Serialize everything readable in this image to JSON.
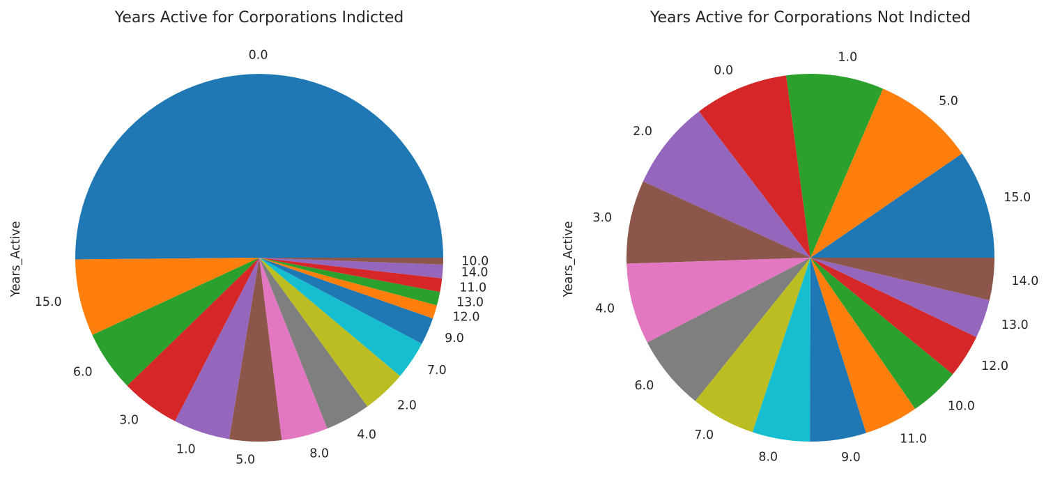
{
  "chart_data": [
    {
      "type": "pie",
      "title": "Years Active for Corporations Indicted",
      "ylabel": "Years_Active",
      "start_angle_deg": 0,
      "direction": "counterclockwise",
      "slices": [
        {
          "label": "0.0",
          "value": 50.5,
          "color": "#1f77b4"
        },
        {
          "label": "15.0",
          "value": 6.8,
          "color": "#ff7f0e"
        },
        {
          "label": "6.0",
          "value": 5.4,
          "color": "#2ca02c"
        },
        {
          "label": "3.0",
          "value": 5.2,
          "color": "#d62728"
        },
        {
          "label": "1.0",
          "value": 5.0,
          "color": "#9467bd"
        },
        {
          "label": "5.0",
          "value": 4.6,
          "color": "#8c564b"
        },
        {
          "label": "8.0",
          "value": 4.1,
          "color": "#e377c2"
        },
        {
          "label": "4.0",
          "value": 4.0,
          "color": "#7f7f7f"
        },
        {
          "label": "2.0",
          "value": 3.9,
          "color": "#bcbd22"
        },
        {
          "label": "7.0",
          "value": 3.4,
          "color": "#17becf"
        },
        {
          "label": "9.0",
          "value": 2.4,
          "color": "#1f77b4"
        },
        {
          "label": "12.0",
          "value": 1.2,
          "color": "#ff7f0e"
        },
        {
          "label": "13.0",
          "value": 1.2,
          "color": "#2ca02c"
        },
        {
          "label": "11.0",
          "value": 1.2,
          "color": "#d62728"
        },
        {
          "label": "14.0",
          "value": 1.2,
          "color": "#9467bd"
        },
        {
          "label": "10.0",
          "value": 0.6,
          "color": "#8c564b"
        }
      ]
    },
    {
      "type": "pie",
      "title": "Years Active for Corporations Not Indicted",
      "ylabel": "Years_Active",
      "start_angle_deg": 0,
      "direction": "counterclockwise",
      "slices": [
        {
          "label": "15.0",
          "value": 9.3,
          "color": "#1f77b4"
        },
        {
          "label": "5.0",
          "value": 8.7,
          "color": "#ff7f0e"
        },
        {
          "label": "1.0",
          "value": 8.3,
          "color": "#2ca02c"
        },
        {
          "label": "0.0",
          "value": 8.0,
          "color": "#d62728"
        },
        {
          "label": "2.0",
          "value": 7.6,
          "color": "#9467bd"
        },
        {
          "label": "3.0",
          "value": 7.1,
          "color": "#8c564b"
        },
        {
          "label": "4.0",
          "value": 6.9,
          "color": "#e377c2"
        },
        {
          "label": "6.0",
          "value": 6.4,
          "color": "#7f7f7f"
        },
        {
          "label": "7.0",
          "value": 5.5,
          "color": "#bcbd22"
        },
        {
          "label": "8.0",
          "value": 4.9,
          "color": "#17becf"
        },
        {
          "label": "9.0",
          "value": 4.8,
          "color": "#1f77b4"
        },
        {
          "label": "11.0",
          "value": 4.6,
          "color": "#ff7f0e"
        },
        {
          "label": "10.0",
          "value": 4.3,
          "color": "#2ca02c"
        },
        {
          "label": "12.0",
          "value": 3.7,
          "color": "#d62728"
        },
        {
          "label": "13.0",
          "value": 3.3,
          "color": "#9467bd"
        },
        {
          "label": "14.0",
          "value": 3.6,
          "color": "#8c564b"
        }
      ]
    }
  ]
}
